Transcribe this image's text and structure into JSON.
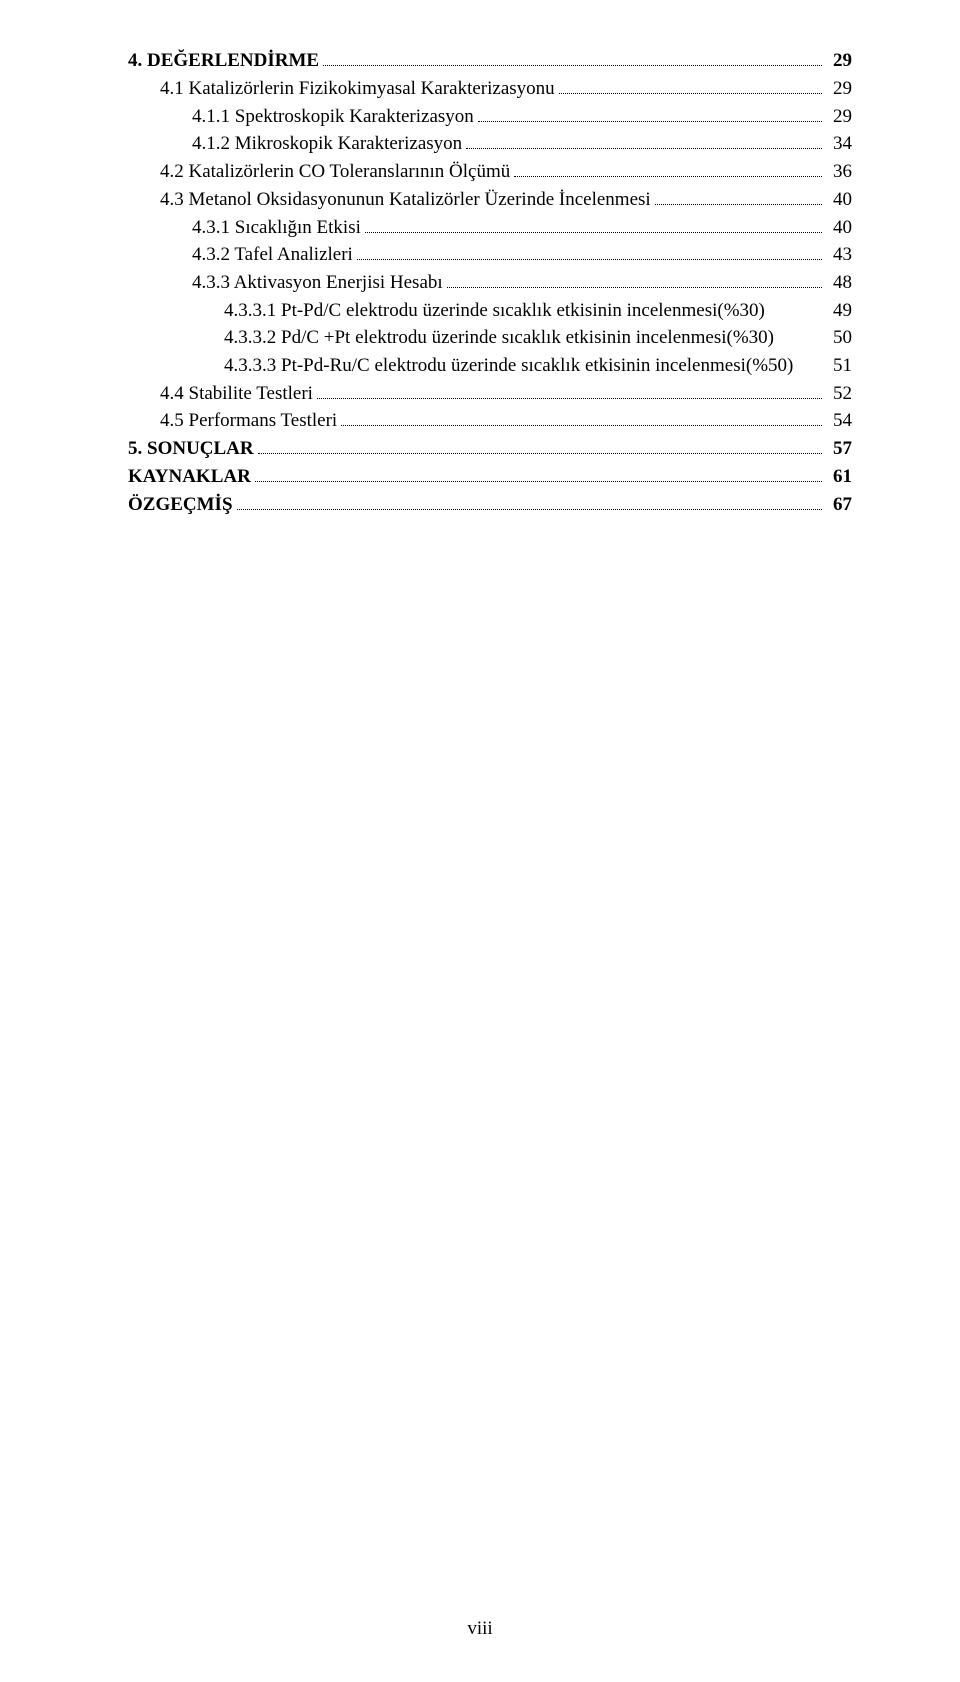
{
  "toc": [
    {
      "label": "4. DEĞERLENDİRME",
      "page": "29",
      "indent": 0,
      "bold": true,
      "leader": true
    },
    {
      "label": "4.1 Katalizörlerin Fizikokimyasal Karakterizasyonu",
      "page": "29",
      "indent": 1,
      "bold": false,
      "leader": true
    },
    {
      "label": "4.1.1 Spektroskopik Karakterizasyon",
      "page": "29",
      "indent": 2,
      "bold": false,
      "leader": true
    },
    {
      "label": "4.1.2 Mikroskopik Karakterizasyon",
      "page": "34",
      "indent": 2,
      "bold": false,
      "leader": true
    },
    {
      "label": "4.2 Katalizörlerin CO Toleranslarının Ölçümü",
      "page": "36",
      "indent": 1,
      "bold": false,
      "leader": true
    },
    {
      "label": "4.3 Metanol Oksidasyonunun Katalizörler Üzerinde İncelenmesi",
      "page": "40",
      "indent": 1,
      "bold": false,
      "leader": true
    },
    {
      "label": "4.3.1 Sıcaklığın Etkisi",
      "page": "40",
      "indent": 2,
      "bold": false,
      "leader": true
    },
    {
      "label": "4.3.2 Tafel Analizleri",
      "page": "43",
      "indent": 2,
      "bold": false,
      "leader": true
    },
    {
      "label": "4.3.3 Aktivasyon Enerjisi Hesabı",
      "page": "48",
      "indent": 2,
      "bold": false,
      "leader": true
    },
    {
      "label": "4.3.3.1 Pt-Pd/C elektrodu üzerinde sıcaklık etkisinin incelenmesi(%30)",
      "page": "49",
      "indent": 3,
      "bold": false,
      "leader": false
    },
    {
      "label": "4.3.3.2 Pd/C +Pt elektrodu üzerinde sıcaklık etkisinin incelenmesi(%30)",
      "page": "50",
      "indent": 3,
      "bold": false,
      "leader": false
    },
    {
      "label": "4.3.3.3 Pt-Pd-Ru/C elektrodu üzerinde sıcaklık etkisinin incelenmesi(%50)",
      "page": "51",
      "indent": 3,
      "bold": false,
      "leader": false
    },
    {
      "label": "4.4 Stabilite Testleri",
      "page": "52",
      "indent": 1,
      "bold": false,
      "leader": true
    },
    {
      "label": "4.5 Performans Testleri",
      "page": "54",
      "indent": 1,
      "bold": false,
      "leader": true
    },
    {
      "label": "5. SONUÇLAR",
      "page": "57",
      "indent": 0,
      "bold": true,
      "leader": true
    },
    {
      "label": "KAYNAKLAR",
      "page": "61",
      "indent": 0,
      "bold": true,
      "leader": true
    },
    {
      "label": "ÖZGEÇMİŞ",
      "page": "67",
      "indent": 0,
      "bold": true,
      "leader": true
    }
  ],
  "page_number": "viii"
}
